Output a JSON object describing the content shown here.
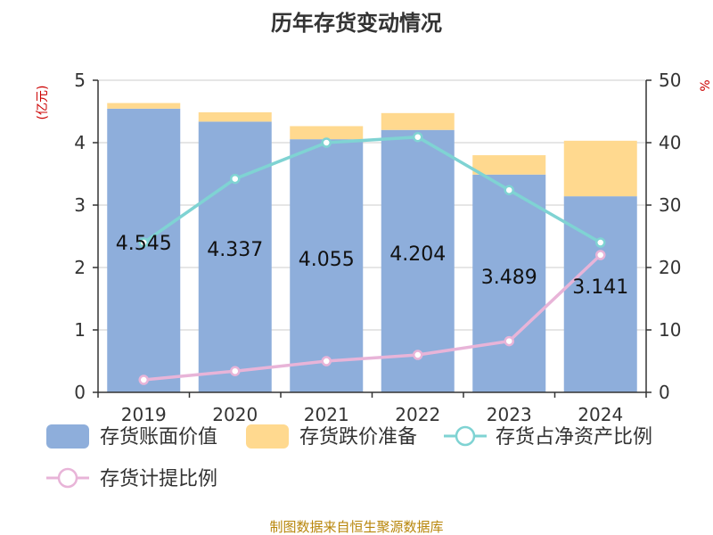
{
  "chart_data": {
    "type": "bar",
    "title": "历年存货变动情况",
    "categories": [
      "2019",
      "2020",
      "2021",
      "2022",
      "2023",
      "2024"
    ],
    "left_axis": {
      "unit": "(亿元)",
      "ylim": [
        0,
        5
      ],
      "ticks": [
        "0",
        "1",
        "2",
        "3",
        "4",
        "5"
      ]
    },
    "right_axis": {
      "unit": "%",
      "ylim": [
        0,
        50
      ],
      "ticks": [
        "0",
        "10",
        "20",
        "30",
        "40",
        "50"
      ]
    },
    "series": [
      {
        "name": "存货账面价值",
        "kind": "bar",
        "axis": "left",
        "color": "#8eaedb",
        "values": [
          4.545,
          4.337,
          4.055,
          4.204,
          3.489,
          3.141
        ],
        "labels": [
          "4.545",
          "4.337",
          "4.055",
          "4.204",
          "3.489",
          "3.141"
        ]
      },
      {
        "name": "存货跌价准备",
        "kind": "bar-stacked",
        "axis": "left",
        "color": "#ffd98f",
        "values": [
          0.09,
          0.15,
          0.21,
          0.27,
          0.31,
          0.89
        ]
      },
      {
        "name": "存货占净资产比例",
        "kind": "line",
        "axis": "right",
        "color": "#7fd3d3",
        "values": [
          24.0,
          34.2,
          40.0,
          40.9,
          32.4,
          24.0
        ]
      },
      {
        "name": "存货计提比例",
        "kind": "line",
        "axis": "right",
        "color": "#e8b4d8",
        "values": [
          2.0,
          3.4,
          5.0,
          6.0,
          8.2,
          22.0
        ]
      }
    ],
    "grid": true,
    "legend_position": "bottom"
  },
  "source": "制图数据来自恒生聚源数据库"
}
